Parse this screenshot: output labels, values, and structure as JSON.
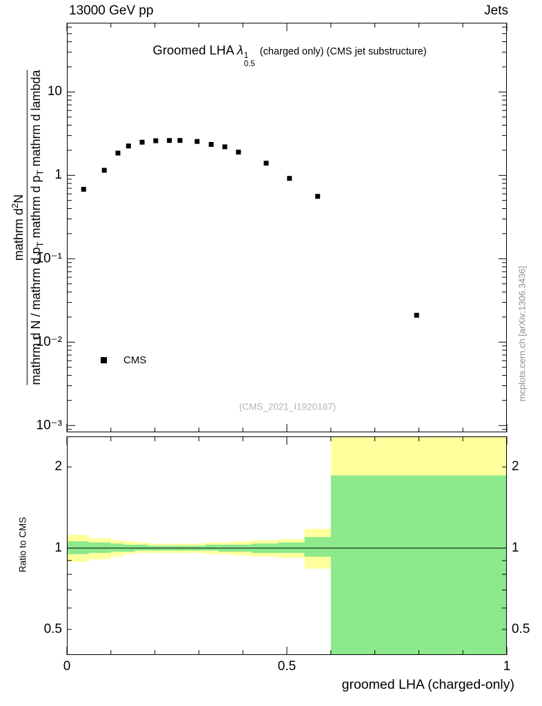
{
  "header": {
    "left_title": "13000 GeV pp",
    "right_title": "Jets"
  },
  "title": {
    "main": "Groomed LHA",
    "symbol": "λ",
    "sup": "1",
    "sub": "0.5",
    "suffix": "(charged only) (CMS jet substructure)"
  },
  "legend": {
    "label": "CMS"
  },
  "watermark": "(CMS_2021_I1920187)",
  "credit": "mcplots.cern.ch [arXiv:1306.3436]",
  "y_label": {
    "numerator_a": "mathrm d",
    "numerator_sup": "2",
    "numerator_b": "N",
    "den_a": "mathrm d N / mathrm d p",
    "den_sub1": "T",
    "den_b": " mathrm d p",
    "den_sub2": "T",
    "den_c": " mathrm d lambda",
    "extra": "1"
  },
  "ratio_label": "Ratio to CMS",
  "x_title": "groomed LHA (charged-only)",
  "chart_data": {
    "type": "scatter",
    "title": "Groomed LHA λ^1_0.5 (charged only) (CMS jet substructure)",
    "xlabel": "groomed LHA (charged-only)",
    "ylabel": "mathrm d²N / mathrm d N mathrm d p_T mathrm d p_T mathrm d lambda",
    "yscale": "log",
    "xlim": [
      0,
      1
    ],
    "ylim": [
      0.00083,
      67.6
    ],
    "xticks": [
      {
        "label": "0",
        "value": 0
      },
      {
        "label": "0.5",
        "value": 0.5
      },
      {
        "label": "1",
        "value": 1
      }
    ],
    "main_yticks": [
      {
        "label": "10",
        "value": 10
      },
      {
        "label": "1",
        "value": 1
      },
      {
        "label": "10⁻¹",
        "value": 0.1
      },
      {
        "label": "10⁻²",
        "value": 0.01
      },
      {
        "label": "10⁻³",
        "value": 0.001
      }
    ],
    "series": [
      {
        "name": "CMS",
        "marker": "square",
        "color": "#000000",
        "x": [
          0.038,
          0.085,
          0.116,
          0.14,
          0.171,
          0.202,
          0.233,
          0.257,
          0.296,
          0.328,
          0.359,
          0.39,
          0.453,
          0.506,
          0.57,
          0.795
        ],
        "y": [
          0.68,
          1.15,
          1.85,
          2.25,
          2.5,
          2.6,
          2.62,
          2.62,
          2.55,
          2.35,
          2.2,
          1.9,
          1.4,
          0.92,
          0.56,
          0.021
        ]
      }
    ],
    "ratio": {
      "ylabel": "Ratio to CMS",
      "yscale": "log",
      "ylim": [
        0.402,
        2.594
      ],
      "reference_line": 1,
      "yticks": [
        {
          "label": "2",
          "value": 2
        },
        {
          "label": "1",
          "value": 1
        },
        {
          "label": "0.5",
          "value": 0.5
        }
      ],
      "band_outer_color": "#ffff9e",
      "band_inner_color": "#8ce98c",
      "segments": [
        {
          "x": [
            0.0,
            0.05
          ],
          "outer": [
            0.89,
            1.12
          ],
          "inner": [
            0.95,
            1.06
          ]
        },
        {
          "x": [
            0.05,
            0.1
          ],
          "outer": [
            0.91,
            1.09
          ],
          "inner": [
            0.96,
            1.05
          ]
        },
        {
          "x": [
            0.1,
            0.13
          ],
          "outer": [
            0.93,
            1.07
          ],
          "inner": [
            0.97,
            1.04
          ]
        },
        {
          "x": [
            0.13,
            0.155
          ],
          "outer": [
            0.95,
            1.06
          ],
          "inner": [
            0.97,
            1.03
          ]
        },
        {
          "x": [
            0.155,
            0.185
          ],
          "outer": [
            0.96,
            1.05
          ],
          "inner": [
            0.98,
            1.03
          ]
        },
        {
          "x": [
            0.185,
            0.215
          ],
          "outer": [
            0.96,
            1.04
          ],
          "inner": [
            0.98,
            1.02
          ]
        },
        {
          "x": [
            0.215,
            0.245
          ],
          "outer": [
            0.96,
            1.04
          ],
          "inner": [
            0.98,
            1.02
          ]
        },
        {
          "x": [
            0.245,
            0.275
          ],
          "outer": [
            0.96,
            1.04
          ],
          "inner": [
            0.98,
            1.02
          ]
        },
        {
          "x": [
            0.275,
            0.315
          ],
          "outer": [
            0.96,
            1.04
          ],
          "inner": [
            0.98,
            1.02
          ]
        },
        {
          "x": [
            0.315,
            0.345
          ],
          "outer": [
            0.95,
            1.05
          ],
          "inner": [
            0.98,
            1.03
          ]
        },
        {
          "x": [
            0.345,
            0.375
          ],
          "outer": [
            0.95,
            1.05
          ],
          "inner": [
            0.97,
            1.03
          ]
        },
        {
          "x": [
            0.375,
            0.42
          ],
          "outer": [
            0.94,
            1.06
          ],
          "inner": [
            0.97,
            1.03
          ]
        },
        {
          "x": [
            0.42,
            0.48
          ],
          "outer": [
            0.93,
            1.07
          ],
          "inner": [
            0.96,
            1.04
          ]
        },
        {
          "x": [
            0.48,
            0.54
          ],
          "outer": [
            0.92,
            1.08
          ],
          "inner": [
            0.96,
            1.05
          ]
        },
        {
          "x": [
            0.54,
            0.6
          ],
          "outer": [
            0.84,
            1.18
          ],
          "inner": [
            0.93,
            1.1
          ]
        },
        {
          "x": [
            0.6,
            1.0
          ],
          "outer": [
            0.4,
            2.6
          ],
          "inner": [
            0.4,
            1.86
          ]
        }
      ]
    }
  }
}
